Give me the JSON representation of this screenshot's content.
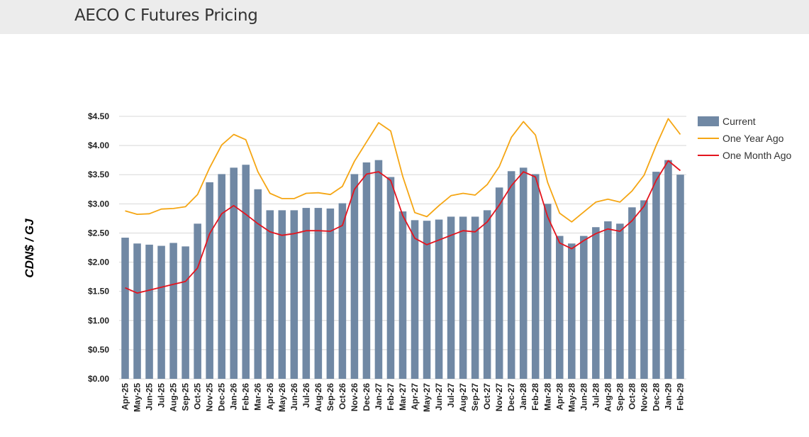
{
  "page": {
    "title": "AECO C Futures Pricing"
  },
  "colors": {
    "current": "#7088a4",
    "one_year_ago": "#f5a614",
    "one_month_ago": "#e3141e",
    "grid": "#d8d8d8"
  },
  "chart_data": {
    "type": "bar",
    "title": "AECO C Futures Pricing",
    "xlabel": "",
    "ylabel": "CDN$ / GJ",
    "ylim": [
      0,
      4.5
    ],
    "yticks": [
      0,
      0.5,
      1.0,
      1.5,
      2.0,
      2.5,
      3.0,
      3.5,
      4.0,
      4.5
    ],
    "ytick_labels": [
      "$0.00",
      "$0.50",
      "$1.00",
      "$1.50",
      "$2.00",
      "$2.50",
      "$3.00",
      "$3.50",
      "$4.00",
      "$4.50"
    ],
    "legend_position": "right",
    "categories": [
      "Apr-25",
      "May-25",
      "Jun-25",
      "Jul-25",
      "Aug-25",
      "Sep-25",
      "Oct-25",
      "Nov-25",
      "Dec-25",
      "Jan-26",
      "Feb-26",
      "Mar-26",
      "Apr-26",
      "May-26",
      "Jun-26",
      "Jul-26",
      "Aug-26",
      "Sep-26",
      "Oct-26",
      "Nov-26",
      "Dec-26",
      "Jan-27",
      "Feb-27",
      "Mar-27",
      "Apr-27",
      "May-27",
      "Jun-27",
      "Jul-27",
      "Aug-27",
      "Sep-27",
      "Oct-27",
      "Nov-27",
      "Dec-27",
      "Jan-28",
      "Feb-28",
      "Mar-28",
      "Apr-28",
      "May-28",
      "Jun-28",
      "Jul-28",
      "Aug-28",
      "Sep-28",
      "Oct-28",
      "Nov-28",
      "Dec-28",
      "Jan-29",
      "Feb-29"
    ],
    "series": [
      {
        "name": "Current",
        "kind": "bar",
        "values": [
          2.42,
          2.32,
          2.3,
          2.28,
          2.33,
          2.27,
          2.66,
          3.37,
          3.51,
          3.62,
          3.67,
          3.25,
          2.89,
          2.89,
          2.89,
          2.93,
          2.93,
          2.92,
          3.01,
          3.51,
          3.71,
          3.75,
          3.46,
          2.87,
          2.72,
          2.71,
          2.73,
          2.78,
          2.78,
          2.78,
          2.89,
          3.28,
          3.56,
          3.62,
          3.51,
          3.0,
          2.45,
          2.32,
          2.45,
          2.6,
          2.7,
          2.66,
          2.94,
          3.06,
          3.55,
          3.75,
          3.5
        ]
      },
      {
        "name": "One Year Ago",
        "kind": "line",
        "values": [
          2.88,
          2.82,
          2.83,
          2.91,
          2.92,
          2.95,
          3.16,
          3.62,
          4.01,
          4.19,
          4.1,
          3.55,
          3.18,
          3.09,
          3.09,
          3.18,
          3.19,
          3.16,
          3.3,
          3.73,
          4.06,
          4.39,
          4.25,
          3.47,
          2.85,
          2.78,
          2.97,
          3.14,
          3.18,
          3.15,
          3.33,
          3.64,
          4.14,
          4.41,
          4.18,
          3.37,
          2.84,
          2.69,
          2.86,
          3.03,
          3.08,
          3.03,
          3.22,
          3.49,
          4.0,
          4.46,
          4.19
        ]
      },
      {
        "name": "One Month Ago",
        "kind": "line",
        "values": [
          1.56,
          1.47,
          1.52,
          1.57,
          1.62,
          1.67,
          1.9,
          2.49,
          2.83,
          2.97,
          2.82,
          2.66,
          2.52,
          2.46,
          2.49,
          2.54,
          2.54,
          2.53,
          2.63,
          3.25,
          3.51,
          3.55,
          3.4,
          2.8,
          2.41,
          2.3,
          2.38,
          2.46,
          2.54,
          2.52,
          2.69,
          2.98,
          3.31,
          3.55,
          3.46,
          2.78,
          2.33,
          2.23,
          2.37,
          2.49,
          2.57,
          2.53,
          2.71,
          2.96,
          3.4,
          3.74,
          3.57
        ]
      }
    ]
  }
}
